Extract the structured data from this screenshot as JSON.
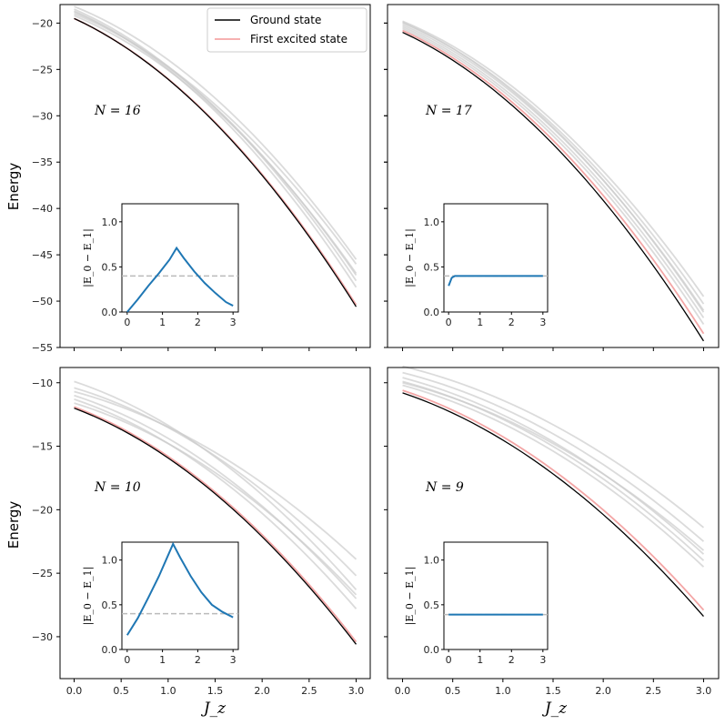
{
  "chart_data": {
    "type": "line",
    "layout": "2x2 grid with inset plots",
    "ylabel": "Energy",
    "xlabel": "J_z",
    "legend": {
      "placement": "top-right of top-left panel",
      "entries": [
        {
          "label": "Ground state",
          "color": "#000000"
        },
        {
          "label": "First excited state",
          "color": "#f4a6a6"
        }
      ]
    },
    "colors": {
      "ground": "#000000",
      "excited": "#f4a6a6",
      "higher": "#cccccc",
      "gap": "#1f77b4",
      "threshold": "#bbbbbb"
    },
    "panels": [
      {
        "label": "N = 16",
        "label_var": "N",
        "label_val": "16",
        "xlim": [
          -0.15,
          3.15
        ],
        "ylim": [
          -55,
          -18
        ],
        "xticks": [
          "0.0",
          "0.5",
          "1.0",
          "1.5",
          "2.0",
          "2.5",
          "3.0"
        ],
        "yticks": [
          -20,
          -25,
          -30,
          -35,
          -40,
          -45,
          -50,
          -55
        ],
        "ground": {
          "start": -19.5,
          "end": -50.6
        },
        "excited": {
          "start": -19.5,
          "end": -50.4
        },
        "higher": [
          {
            "start": -18.5,
            "end": -47.8
          },
          {
            "start": -18.8,
            "end": -47.2
          },
          {
            "start": -19.0,
            "end": -46.0
          },
          {
            "start": -18.2,
            "end": -45.5
          },
          {
            "start": -18.7,
            "end": -48.5
          },
          {
            "start": -19.2,
            "end": -47.0
          }
        ],
        "inset": {
          "ylabel": "|E_0 − E_1|",
          "xlim": [
            -0.15,
            3.15
          ],
          "ylim": [
            0,
            1.2
          ],
          "xticks": [
            "0",
            "1",
            "2",
            "3"
          ],
          "yticks": [
            "0.0",
            "0.5",
            "1.0"
          ],
          "threshold": 0.4,
          "x": [
            0,
            0.3,
            0.6,
            0.9,
            1.2,
            1.4,
            1.6,
            1.9,
            2.2,
            2.5,
            2.8,
            3.0
          ],
          "y": [
            0.0,
            0.14,
            0.29,
            0.43,
            0.58,
            0.71,
            0.6,
            0.45,
            0.32,
            0.21,
            0.11,
            0.07
          ]
        }
      },
      {
        "label": "N = 17",
        "label_var": "N",
        "label_val": "17",
        "xlim": [
          -0.15,
          3.15
        ],
        "ylim": [
          -55,
          -18
        ],
        "xticks": [
          "0.0",
          "0.5",
          "1.0",
          "1.5",
          "2.0",
          "2.5",
          "3.0"
        ],
        "yticks": [
          -20,
          -25,
          -30,
          -35,
          -40,
          -45,
          -50,
          -55
        ],
        "ground": {
          "start": -21.0,
          "end": -54.3
        },
        "excited": {
          "start": -20.8,
          "end": -53.5
        },
        "higher": [
          {
            "start": -19.8,
            "end": -49.5
          },
          {
            "start": -20.0,
            "end": -50.3
          },
          {
            "start": -20.2,
            "end": -51.0
          },
          {
            "start": -20.4,
            "end": -51.8
          },
          {
            "start": -20.6,
            "end": -52.5
          },
          {
            "start": -19.9,
            "end": -51.2
          }
        ],
        "inset": {
          "ylabel": "|E_0 − E_1|",
          "xlim": [
            -0.15,
            3.15
          ],
          "ylim": [
            0,
            1.2
          ],
          "xticks": [
            "0",
            "1",
            "2",
            "3"
          ],
          "yticks": [
            "0.0",
            "0.5",
            "1.0"
          ],
          "threshold": 0.4,
          "x": [
            0,
            0.1,
            0.2,
            0.5,
            1.0,
            1.5,
            2.0,
            2.5,
            3.0
          ],
          "y": [
            0.29,
            0.38,
            0.4,
            0.4,
            0.4,
            0.4,
            0.4,
            0.4,
            0.4
          ]
        }
      },
      {
        "label": "N = 10",
        "label_var": "N",
        "label_val": "10",
        "xlim": [
          -0.15,
          3.15
        ],
        "ylim": [
          -33.3,
          -8.8
        ],
        "xticks": [
          "0.0",
          "0.5",
          "1.0",
          "1.5",
          "2.0",
          "2.5",
          "3.0"
        ],
        "yticks": [
          -10,
          -15,
          -20,
          -25,
          -30
        ],
        "ground": {
          "start": -12.0,
          "end": -30.6
        },
        "excited": {
          "start": -11.9,
          "end": -30.4
        },
        "higher": [
          {
            "start": -9.9,
            "end": -26.3
          },
          {
            "start": -10.4,
            "end": -25.2
          },
          {
            "start": -10.7,
            "end": -23.9
          },
          {
            "start": -11.0,
            "end": -27.0
          },
          {
            "start": -11.3,
            "end": -27.8
          },
          {
            "start": -11.6,
            "end": -26.7
          }
        ],
        "inset": {
          "ylabel": "|E_0 − E_1|",
          "xlim": [
            -0.15,
            3.15
          ],
          "ylim": [
            0,
            1.2
          ],
          "xticks": [
            "0",
            "1",
            "2",
            "3"
          ],
          "yticks": [
            "0.0",
            "0.5",
            "1.0"
          ],
          "threshold": 0.4,
          "x": [
            0,
            0.3,
            0.6,
            0.9,
            1.1,
            1.3,
            1.5,
            1.8,
            2.1,
            2.4,
            2.7,
            3.0
          ],
          "y": [
            0.16,
            0.35,
            0.58,
            0.82,
            1.0,
            1.18,
            1.03,
            0.82,
            0.64,
            0.5,
            0.42,
            0.36
          ]
        }
      },
      {
        "label": "N = 9",
        "label_var": "N",
        "label_val": "9",
        "xlim": [
          -0.15,
          3.15
        ],
        "ylim": [
          -33.3,
          -8.8
        ],
        "xticks": [
          "0.0",
          "0.5",
          "1.0",
          "1.5",
          "2.0",
          "2.5",
          "3.0"
        ],
        "yticks": [],
        "ground": {
          "start": -10.8,
          "end": -28.4
        },
        "excited": {
          "start": -10.6,
          "end": -27.9
        },
        "higher": [
          {
            "start": -8.7,
            "end": -21.4
          },
          {
            "start": -9.2,
            "end": -22.5
          },
          {
            "start": -9.6,
            "end": -23.5
          },
          {
            "start": -9.9,
            "end": -24.0
          },
          {
            "start": -10.2,
            "end": -24.5
          },
          {
            "start": -10.0,
            "end": -23.2
          }
        ],
        "inset": {
          "ylabel": "|E_0 − E_1|",
          "xlim": [
            -0.15,
            3.15
          ],
          "ylim": [
            0,
            1.2
          ],
          "xticks": [
            "0",
            "1",
            "2",
            "3"
          ],
          "yticks": [
            "0.0",
            "0.5",
            "1.0"
          ],
          "threshold": 0.39,
          "x": [
            0,
            0.5,
            1.0,
            1.5,
            2.0,
            2.5,
            3.0
          ],
          "y": [
            0.39,
            0.39,
            0.39,
            0.39,
            0.39,
            0.39,
            0.39
          ]
        }
      }
    ]
  }
}
